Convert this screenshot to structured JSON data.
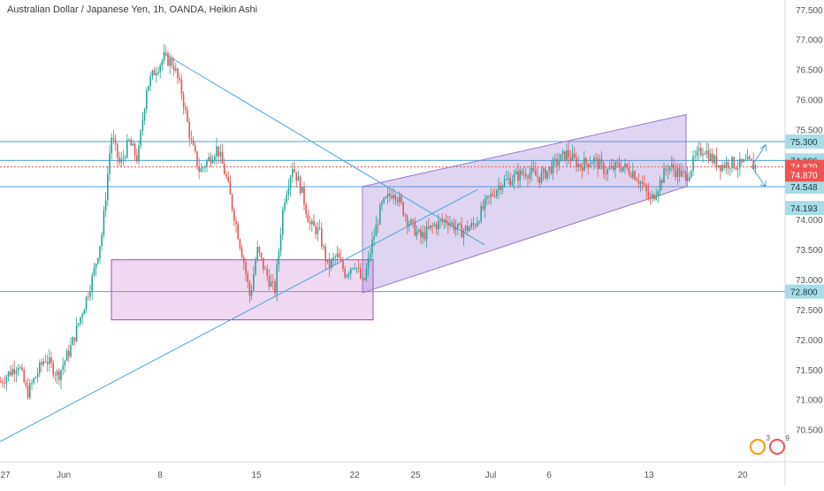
{
  "chart_data": {
    "type": "candlestick",
    "title": "Australian Dollar / Japanese Yen, 1h, OANDA, Heikin Ashi",
    "ylim": [
      70.2,
      77.6
    ],
    "y_ticks": [
      "70.500",
      "71.000",
      "71.500",
      "72.000",
      "72.500",
      "73.000",
      "73.500",
      "74.000",
      "74.500",
      "75.000",
      "75.500",
      "76.000",
      "76.500",
      "77.000",
      "77.500"
    ],
    "x_ticks": [
      "27",
      "Jun",
      "8",
      "15",
      "22",
      "25",
      "Jul",
      "6",
      "13",
      "20"
    ],
    "x_tick_pos": [
      0,
      72,
      181,
      290,
      401,
      470,
      555,
      621,
      734,
      840
    ],
    "price_path": [
      [
        0,
        71.3
      ],
      [
        20,
        71.6
      ],
      [
        30,
        71.1
      ],
      [
        50,
        71.7
      ],
      [
        65,
        71.4
      ],
      [
        80,
        71.9
      ],
      [
        95,
        72.6
      ],
      [
        105,
        73.1
      ],
      [
        115,
        73.8
      ],
      [
        125,
        75.4
      ],
      [
        135,
        74.9
      ],
      [
        145,
        75.3
      ],
      [
        155,
        75.0
      ],
      [
        165,
        76.2
      ],
      [
        175,
        76.5
      ],
      [
        185,
        76.7
      ],
      [
        195,
        76.6
      ],
      [
        205,
        76.1
      ],
      [
        215,
        75.3
      ],
      [
        225,
        74.8
      ],
      [
        235,
        75.0
      ],
      [
        245,
        75.2
      ],
      [
        255,
        74.7
      ],
      [
        265,
        74.0
      ],
      [
        275,
        73.3
      ],
      [
        282,
        72.7
      ],
      [
        290,
        73.5
      ],
      [
        300,
        73.1
      ],
      [
        310,
        72.8
      ],
      [
        320,
        74.3
      ],
      [
        330,
        74.9
      ],
      [
        340,
        74.5
      ],
      [
        350,
        73.9
      ],
      [
        360,
        73.8
      ],
      [
        370,
        73.2
      ],
      [
        380,
        73.4
      ],
      [
        390,
        73.1
      ],
      [
        400,
        73.3
      ],
      [
        410,
        72.9
      ],
      [
        420,
        73.6
      ],
      [
        430,
        74.2
      ],
      [
        445,
        74.5
      ],
      [
        460,
        74.0
      ],
      [
        475,
        73.7
      ],
      [
        490,
        73.9
      ],
      [
        505,
        74.0
      ],
      [
        520,
        73.8
      ],
      [
        535,
        73.9
      ],
      [
        550,
        74.3
      ],
      [
        565,
        74.6
      ],
      [
        580,
        74.7
      ],
      [
        595,
        74.8
      ],
      [
        610,
        74.7
      ],
      [
        625,
        74.9
      ],
      [
        640,
        75.1
      ],
      [
        655,
        74.9
      ],
      [
        670,
        75.0
      ],
      [
        685,
        74.8
      ],
      [
        700,
        74.9
      ],
      [
        715,
        74.8
      ],
      [
        725,
        74.6
      ],
      [
        735,
        74.3
      ],
      [
        745,
        74.6
      ],
      [
        755,
        74.9
      ],
      [
        765,
        74.8
      ],
      [
        775,
        74.7
      ],
      [
        785,
        75.0
      ],
      [
        795,
        75.2
      ],
      [
        805,
        75.0
      ],
      [
        815,
        74.9
      ],
      [
        825,
        74.95
      ],
      [
        835,
        74.9
      ],
      [
        845,
        74.95
      ],
      [
        855,
        74.88
      ]
    ],
    "levels": [
      {
        "label": "75.300",
        "value": 75.3
      },
      {
        "label": "74.986",
        "value": 74.986
      },
      {
        "label": "74.548",
        "value": 74.548
      },
      {
        "label": "72.800",
        "value": 72.8
      }
    ],
    "current_price": {
      "label": "74.879",
      "value": 74.879
    },
    "second_price": {
      "label": "74.870",
      "value": 74.87
    },
    "next_level": {
      "label": "74.193",
      "value": 74.193
    },
    "colors": {
      "up": "#26a69a",
      "down": "#ef5350",
      "line": "#4aa3df",
      "level_badge": "#a8dde6",
      "price_badge": "#ef5350",
      "channel": "#9575cd"
    }
  },
  "badges": {
    "left_count": "3",
    "right_count": "9"
  }
}
